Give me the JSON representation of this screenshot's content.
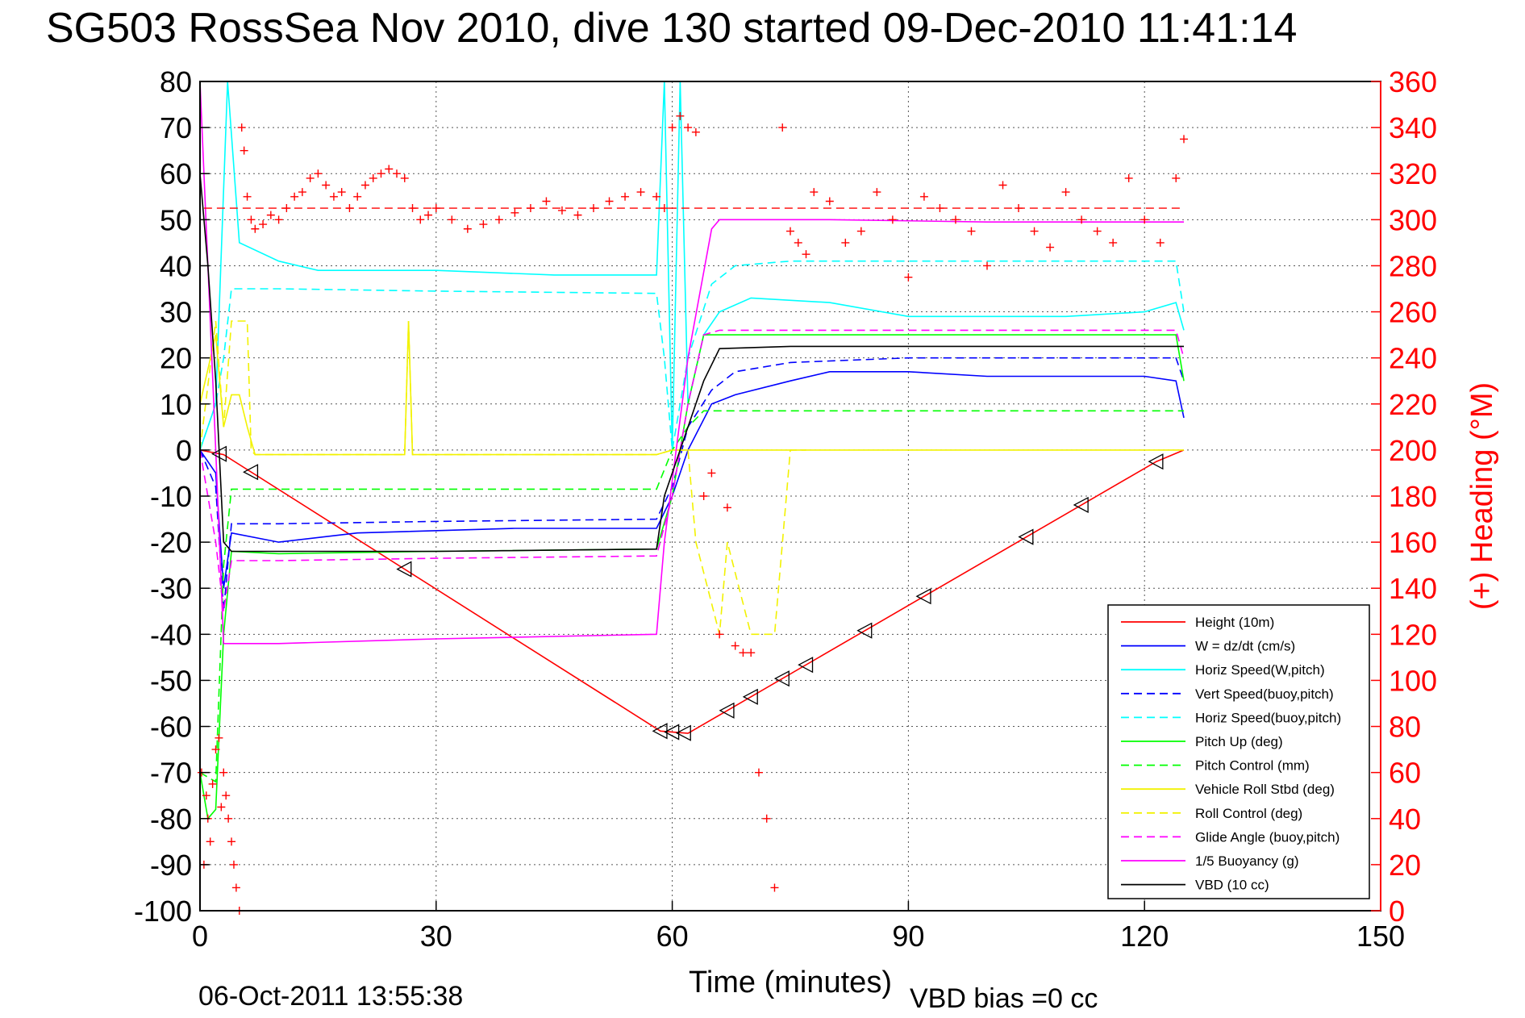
{
  "chart_data": {
    "type": "line",
    "title": "SG503 RossSea Nov 2010, dive 130 started 09-Dec-2010 11:41:14",
    "xlabel": "Time (minutes)",
    "ylabel_right": "(+) Heading (°M)",
    "footer_date": "06-Oct-2011 13:55:38",
    "footer_note": "VBD bias =0 cc",
    "xlim": [
      0,
      150
    ],
    "ylim": [
      -100,
      80
    ],
    "ylim_right": [
      0,
      360
    ],
    "x_ticks": [
      0,
      30,
      60,
      90,
      120,
      150
    ],
    "y_ticks": [
      80,
      70,
      60,
      50,
      40,
      30,
      20,
      10,
      0,
      -10,
      -20,
      -30,
      -40,
      -50,
      -60,
      -70,
      -80,
      -90,
      -100
    ],
    "y2_ticks": [
      360,
      340,
      320,
      300,
      280,
      260,
      240,
      220,
      200,
      180,
      160,
      140,
      120,
      100,
      80,
      60,
      40,
      20,
      0
    ],
    "grid": true,
    "legend_position": "bottom-right",
    "colors": {
      "red": "#ff0000",
      "blue": "#0000ff",
      "cyan": "#00ffff",
      "green": "#00ff00",
      "yellow": "#ffff00",
      "magenta": "#ff00ff",
      "black": "#000000"
    },
    "series": [
      {
        "name": "Height (10m)",
        "color": "#ff0000",
        "style": "solid",
        "x": [
          0,
          3,
          58.5,
          62,
          121.5,
          125
        ],
        "y": [
          0,
          -1,
          -61,
          -61.5,
          -2.5,
          0
        ]
      },
      {
        "name": "W = dz/dt (cm/s)",
        "color": "#0000ff",
        "style": "solid",
        "x": [
          0,
          2,
          3,
          4,
          10,
          20,
          40,
          58,
          60,
          62,
          65,
          68,
          75,
          80,
          90,
          100,
          110,
          120,
          124,
          125
        ],
        "y": [
          0,
          -5,
          -30,
          -18,
          -20,
          -18,
          -17,
          -17,
          -10,
          0,
          10,
          12,
          15,
          17,
          17,
          16,
          16,
          16,
          15,
          7
        ]
      },
      {
        "name": "Horiz Speed(W,pitch)",
        "color": "#00ffff",
        "style": "solid",
        "x": [
          0,
          2,
          3.5,
          5,
          10,
          15,
          30,
          45,
          58,
          59,
          60,
          61,
          62,
          64,
          66,
          70,
          80,
          90,
          100,
          110,
          120,
          124,
          125
        ],
        "y": [
          0,
          10,
          80,
          45,
          41,
          39,
          39,
          38,
          38,
          80,
          0,
          80,
          10,
          25,
          30,
          33,
          32,
          29,
          29,
          29,
          30,
          32,
          26
        ]
      },
      {
        "name": "Vert Speed(buoy,pitch)",
        "color": "#0000ff",
        "style": "dashed",
        "x": [
          0,
          2,
          3,
          4,
          10,
          30,
          58,
          60,
          62,
          65,
          68,
          75,
          90,
          110,
          124,
          125
        ],
        "y": [
          0,
          -8,
          -35,
          -16,
          -16,
          -15.5,
          -15,
          -8,
          5,
          13,
          17,
          19,
          20,
          20,
          20,
          15
        ]
      },
      {
        "name": "Horiz Speed(buoy,pitch)",
        "color": "#00ffff",
        "style": "dashed",
        "x": [
          0,
          2,
          3,
          4,
          10,
          30,
          58,
          59,
          60,
          62,
          65,
          68,
          75,
          90,
          110,
          124,
          125
        ],
        "y": [
          0,
          10,
          20,
          35,
          35,
          34.5,
          34,
          20,
          0,
          20,
          36,
          40,
          41,
          41,
          41,
          41,
          30
        ]
      },
      {
        "name": "Pitch Up (deg)",
        "color": "#00ff00",
        "style": "solid",
        "x": [
          0,
          1,
          2,
          3,
          4,
          10,
          30,
          58,
          60,
          62,
          64,
          66,
          70,
          80,
          90,
          100,
          110,
          120,
          124,
          125
        ],
        "y": [
          -70,
          -80,
          -78,
          -40,
          -22,
          -22.5,
          -22,
          -21.5,
          -10,
          10,
          25,
          25,
          25,
          25,
          25,
          25,
          25,
          25,
          25,
          15
        ]
      },
      {
        "name": "Pitch Control (mm)",
        "color": "#00ff00",
        "style": "dashed",
        "x": [
          0,
          2,
          3,
          4,
          58,
          60,
          62,
          64,
          66,
          125
        ],
        "y": [
          -70,
          -72,
          -25,
          -8.5,
          -8.5,
          0,
          5,
          8.5,
          8.5,
          8.5
        ]
      },
      {
        "name": "Vehicle Roll Stbd (deg)",
        "color": "#ffff00",
        "style": "solid",
        "x": [
          0,
          2,
          3,
          4,
          5,
          6,
          7,
          26,
          26.5,
          27,
          58,
          60,
          62,
          64,
          80,
          100,
          120,
          125
        ],
        "y": [
          10,
          25,
          5,
          12,
          12,
          5,
          -1,
          -1,
          28,
          -1,
          -1,
          0,
          0,
          0,
          0,
          0,
          0,
          0
        ]
      },
      {
        "name": "Roll Control (deg)",
        "color": "#ffff00",
        "style": "dashed",
        "x": [
          0,
          2,
          3,
          4,
          6,
          6.5,
          7,
          26,
          26.5,
          27,
          58,
          60,
          62,
          63,
          66,
          67,
          70,
          73,
          75,
          77
        ],
        "y": [
          0,
          28,
          5,
          28,
          28,
          0,
          -1,
          -1,
          28,
          -1,
          -1,
          0,
          0,
          -20,
          -40,
          -20,
          -40,
          -40,
          0,
          0
        ]
      },
      {
        "name": "Glide Angle (buoy,pitch)",
        "color": "#ff00ff",
        "style": "dashed",
        "x": [
          0,
          2,
          3,
          4,
          10,
          30,
          58,
          60,
          62,
          64,
          66,
          70,
          80,
          90,
          110,
          124,
          125
        ],
        "y": [
          0,
          -20,
          -35,
          -24,
          -24,
          -23.5,
          -23,
          -10,
          10,
          25,
          26,
          26,
          26,
          26,
          26,
          26,
          20
        ]
      },
      {
        "name": "1/5 Buoyancy (g)",
        "color": "#ff00ff",
        "style": "solid",
        "x": [
          0,
          1,
          2,
          3,
          4,
          10,
          30,
          58,
          59,
          62,
          65,
          66,
          80,
          100,
          125
        ],
        "y": [
          80,
          40,
          0,
          -42,
          -42,
          -42,
          -41,
          -40,
          -20,
          20,
          48,
          50,
          50,
          49.5,
          49.5
        ]
      },
      {
        "name": "VBD (10 cc)",
        "color": "#000000",
        "style": "solid",
        "x": [
          0,
          1,
          2,
          3,
          4,
          10,
          30,
          58,
          59,
          60,
          62,
          64,
          66,
          75,
          90,
          110,
          125
        ],
        "y": [
          60,
          40,
          15,
          -20,
          -22,
          -22,
          -22,
          -21.5,
          -10,
          -5,
          5,
          15,
          22,
          22.5,
          22.5,
          22.5,
          22.5
        ]
      }
    ],
    "heading_reference_deg": 305,
    "heading_points": {
      "name": "(+) Heading",
      "axis": "right",
      "x": [
        0.2,
        0.5,
        0.8,
        1.0,
        1.3,
        1.6,
        2.0,
        2.4,
        2.7,
        3.0,
        3.3,
        3.6,
        4.0,
        4.3,
        4.6,
        5.0,
        5.3,
        5.6,
        6.0,
        6.5,
        7,
        8,
        9,
        10,
        11,
        12,
        13,
        14,
        15,
        16,
        17,
        18,
        19,
        20,
        21,
        22,
        23,
        24,
        25,
        26,
        27,
        28,
        29,
        30,
        32,
        34,
        36,
        38,
        40,
        42,
        44,
        46,
        48,
        50,
        52,
        54,
        56,
        58,
        59,
        60,
        61,
        62,
        63,
        64,
        65,
        66,
        67,
        68,
        69,
        70,
        71,
        72,
        73,
        74,
        75,
        76,
        77,
        78,
        80,
        82,
        84,
        86,
        88,
        90,
        92,
        94,
        96,
        98,
        100,
        102,
        104,
        106,
        108,
        110,
        112,
        114,
        116,
        118,
        120,
        122,
        124,
        125
      ],
      "y": [
        60,
        20,
        50,
        40,
        30,
        55,
        70,
        75,
        45,
        60,
        50,
        40,
        30,
        20,
        10,
        0,
        340,
        330,
        310,
        300,
        296,
        298,
        302,
        300,
        305,
        310,
        312,
        318,
        320,
        315,
        310,
        312,
        305,
        310,
        315,
        318,
        320,
        322,
        320,
        318,
        305,
        300,
        302,
        305,
        300,
        296,
        298,
        300,
        303,
        305,
        308,
        304,
        302,
        305,
        308,
        310,
        312,
        310,
        305,
        340,
        345,
        340,
        338,
        180,
        190,
        120,
        175,
        115,
        112,
        112,
        60,
        40,
        10,
        340,
        295,
        290,
        285,
        312,
        308,
        290,
        295,
        312,
        300,
        275,
        310,
        305,
        300,
        295,
        280,
        315,
        305,
        295,
        288,
        312,
        300,
        295,
        290,
        318,
        300,
        290,
        318,
        335
      ]
    }
  }
}
